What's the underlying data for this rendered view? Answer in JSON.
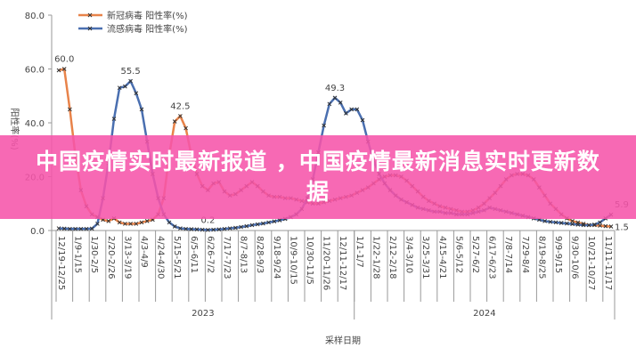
{
  "chart_data": {
    "type": "line",
    "y_label": "阳性率(%)",
    "x_label": "采样日期",
    "categories": [
      "12/19-12/25",
      null,
      null,
      "1/9-1/15",
      null,
      null,
      "1/30-2/5",
      null,
      null,
      "2/20-2/26",
      null,
      null,
      "3/13-3/19",
      null,
      null,
      "4/3-4/9",
      null,
      null,
      "4/24-4/30",
      null,
      null,
      "5/15-5/21",
      null,
      null,
      "6/5-6/11",
      null,
      null,
      "6/26-7/2",
      null,
      null,
      "7/17-7/23",
      null,
      null,
      "8/7-8/13",
      null,
      null,
      "8/28-9/3",
      null,
      null,
      "9/18-9/24",
      null,
      null,
      "10/9-10/15",
      null,
      null,
      "10/30-11/5",
      null,
      null,
      "11/20-11/26",
      null,
      null,
      "12/11-12/17",
      null,
      null,
      "1/1-1/7",
      null,
      null,
      "1/22-1/28",
      null,
      null,
      "2/12-2/18",
      null,
      null,
      "3/4-3/10",
      null,
      null,
      "3/25-3/31",
      null,
      null,
      "4/15-4/21",
      null,
      null,
      "5/6-5/12",
      null,
      null,
      "5/27-6/2",
      null,
      null,
      "6/17-6/23",
      null,
      null,
      "7/8-7/14",
      null,
      null,
      "7/29-8/4",
      null,
      null,
      "8/19-8/25",
      null,
      null,
      "9/9-9/15",
      null,
      null,
      "9/30-10/6",
      null,
      null,
      "10/21-10/27",
      null,
      null,
      "11/11-11/17",
      null
    ],
    "groups": [
      {
        "label": "2023",
        "start": 0,
        "end": 53
      },
      {
        "label": "2024",
        "start": 54,
        "end": 100
      }
    ],
    "series": [
      {
        "name": "新冠病毒 阳性率(%)",
        "color": "#e8834a",
        "values": [
          59.5,
          60.0,
          45,
          28,
          15,
          9,
          6,
          5,
          4,
          3.5,
          4.5,
          3,
          2.5,
          2.5,
          2.5,
          3,
          3.5,
          4,
          6,
          12,
          28,
          40.5,
          42.5,
          38,
          28,
          21,
          16.5,
          15,
          17.5,
          18,
          14.5,
          13,
          13.5,
          15,
          16.5,
          18,
          16.5,
          14.5,
          13,
          12.5,
          12.5,
          12,
          12,
          11.5,
          11,
          10.5,
          10,
          10,
          10.5,
          11,
          11.5,
          12,
          12.5,
          13,
          14,
          15,
          16,
          17.5,
          19,
          20,
          20.5,
          20.5,
          20,
          18.5,
          16.5,
          14.5,
          12.5,
          11,
          10,
          9,
          8.5,
          8,
          7.5,
          7,
          7,
          7.5,
          8.5,
          10,
          12,
          14,
          16.5,
          19,
          20.5,
          21,
          21,
          20.5,
          19,
          16,
          13,
          10,
          8,
          6,
          4.5,
          3.5,
          3,
          2.5,
          2,
          2,
          1.8,
          1.6,
          1.5
        ]
      },
      {
        "name": "流感病毒 阳性率(%)",
        "color": "#4a6fb0",
        "values": [
          0.8,
          0.7,
          0.6,
          0.6,
          0.6,
          0.6,
          0.7,
          2.5,
          12,
          25,
          41.5,
          53,
          53.5,
          55.5,
          51,
          45,
          33,
          21,
          12,
          6,
          3,
          1.5,
          0.8,
          0.6,
          0.5,
          0.4,
          0.3,
          0.2,
          0.3,
          0.4,
          0.6,
          0.8,
          1,
          1.3,
          1.6,
          2,
          2.3,
          2.6,
          3,
          3.4,
          3.8,
          4.3,
          5,
          6,
          8,
          12,
          19,
          29,
          39,
          47,
          49.3,
          47.5,
          43.5,
          45,
          45,
          41,
          33,
          26,
          21,
          17.5,
          15,
          13,
          11.5,
          10.5,
          9.5,
          8.5,
          8,
          7.5,
          7,
          7,
          6.5,
          6.5,
          6,
          6,
          6,
          6.5,
          7,
          7.5,
          8.5,
          8,
          7.5,
          7,
          6.5,
          6,
          5.5,
          5,
          4.5,
          4,
          3.5,
          3.2,
          3,
          2.8,
          2.6,
          2.4,
          2.2,
          2,
          2,
          2.2,
          3,
          4.5,
          5.9
        ]
      }
    ],
    "annotations": [
      {
        "series": 0,
        "index": 1,
        "label": "60.0"
      },
      {
        "series": 1,
        "index": 13,
        "label": "55.5"
      },
      {
        "series": 0,
        "index": 22,
        "label": "42.5"
      },
      {
        "series": 1,
        "index": 27,
        "label": "0.2"
      },
      {
        "series": 1,
        "index": 50,
        "label": "49.3"
      },
      {
        "series": 1,
        "index": 100,
        "label": "5.9"
      },
      {
        "series": 0,
        "index": 100,
        "label": "1.5"
      }
    ],
    "ylim": [
      0,
      80
    ],
    "yticks": [
      {
        "value": 0,
        "label": "0.0"
      },
      {
        "value": 20,
        "label": "20.0"
      },
      {
        "value": 40,
        "label": "40.0"
      },
      {
        "value": 60,
        "label": "60.0"
      },
      {
        "value": 80,
        "label": "80.0"
      }
    ],
    "legend": "upper left"
  },
  "overlay": {
    "text": "中国疫情实时最新报道 ，中国疫情最新消息实时更新数据"
  }
}
